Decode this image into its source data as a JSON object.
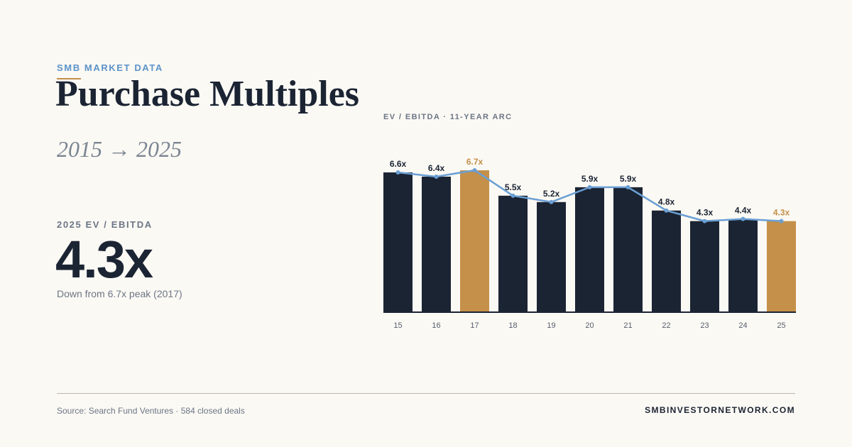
{
  "header": {
    "eyebrow": "SMB MARKET DATA",
    "title": "Purchase Multiples",
    "subtitle": "2015 → 2025"
  },
  "stat": {
    "label": "2025 EV / EBITDA",
    "value": "4.3x",
    "note": "Down from 6.7x peak (2017)"
  },
  "chart_data": {
    "type": "bar",
    "title": "EV / EBITDA · 11-YEAR ARC",
    "categories": [
      "15",
      "16",
      "17",
      "18",
      "19",
      "20",
      "21",
      "22",
      "23",
      "24",
      "25"
    ],
    "values": [
      6.6,
      6.4,
      6.7,
      5.5,
      5.2,
      5.9,
      5.9,
      4.8,
      4.3,
      4.4,
      4.3
    ],
    "value_labels": [
      "6.6x",
      "6.4x",
      "6.7x",
      "5.5x",
      "5.2x",
      "5.9x",
      "5.9x",
      "4.8x",
      "4.3x",
      "4.4x",
      "4.3x"
    ],
    "highlight": [
      "17",
      "25"
    ],
    "overlay_line": true,
    "ylim": [
      0,
      6.7
    ],
    "grid": false,
    "legend": "none",
    "colors": {
      "bar": "#1b2433",
      "highlight": "#c4904a",
      "line": "#6a9fd4",
      "label": "#1b2433"
    }
  },
  "footer": {
    "source": "Source: Search Fund Ventures · 584 closed deals",
    "site": "SMBINVESTORNETWORK.COM"
  }
}
